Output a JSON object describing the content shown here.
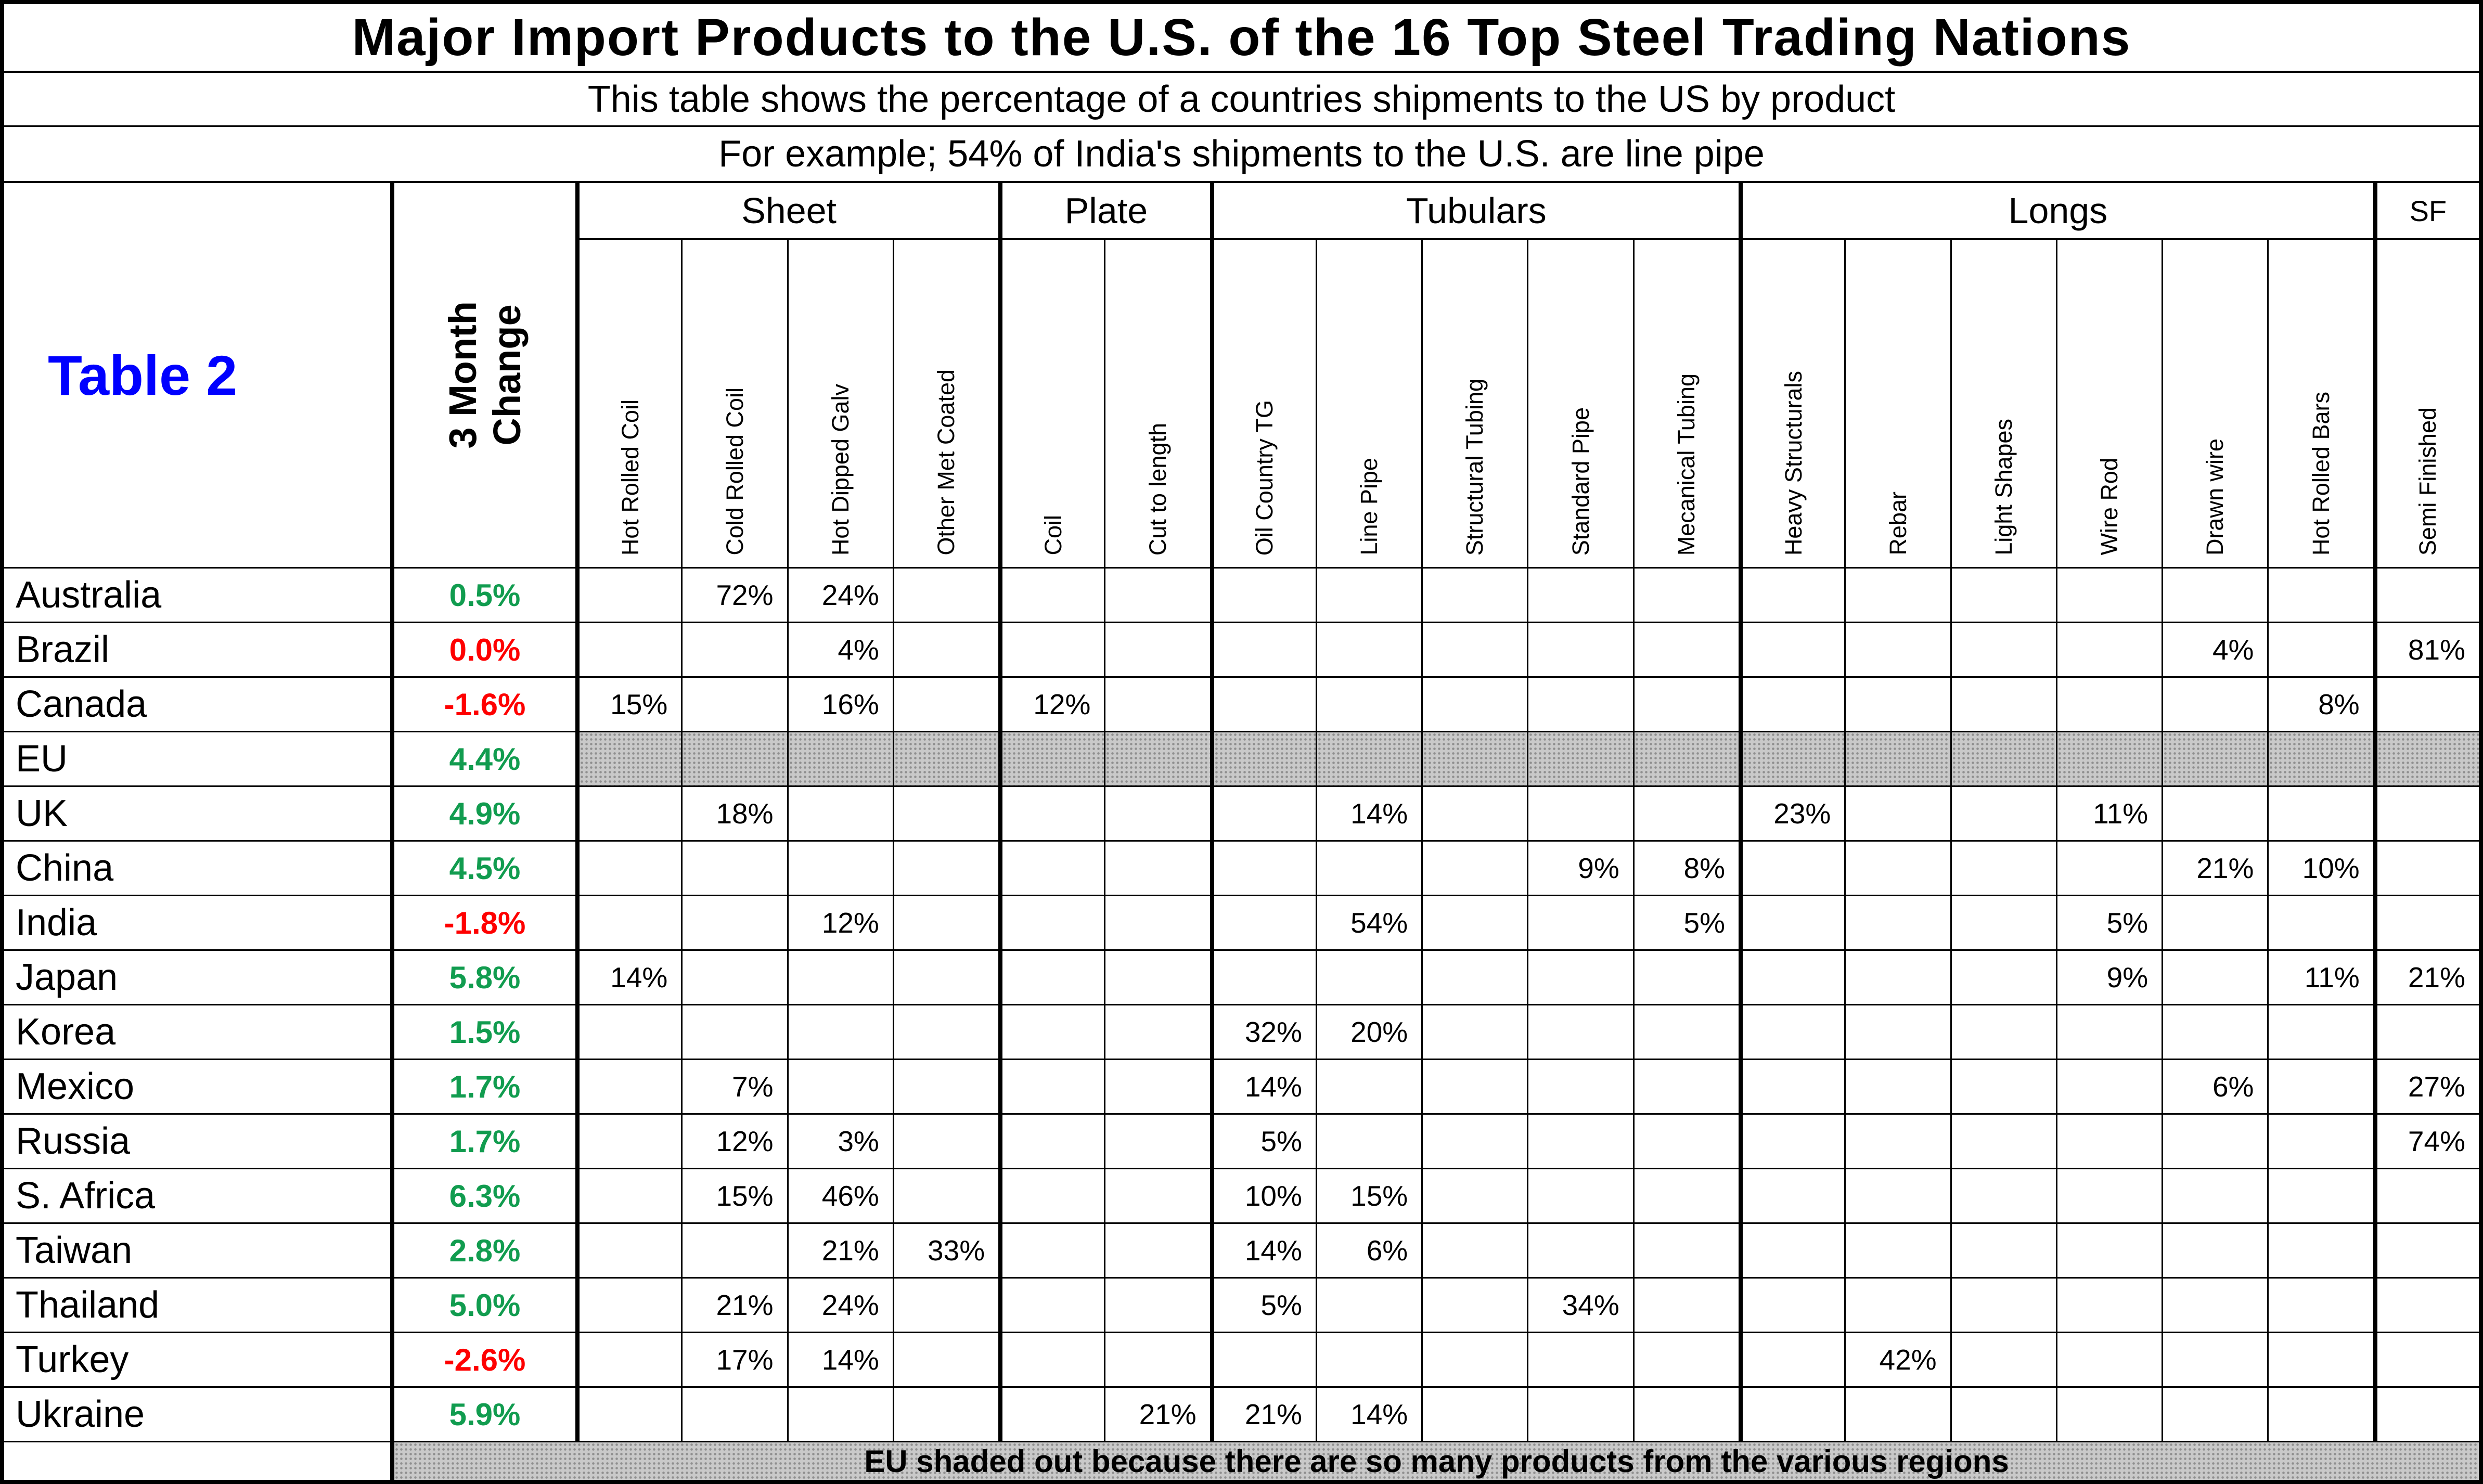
{
  "title": "Major Import Products to the U.S. of the 16 Top Steel Trading Nations",
  "subtitle1": "This table shows the percentage of a countries shipments to the US by product",
  "subtitle2": "For example; 54% of India's shipments to the U.S. are line pipe",
  "table_label": "Table 2",
  "change_header": "3 Month\nChange",
  "footer": "EU shaded out because there are so many products from the various regions",
  "colors": {
    "positive": "#119c4f",
    "negative": "#fe0000",
    "table_label": "#0000ff",
    "shaded_bg": "#c9c9c9",
    "shaded_dot": "#8f8f8f"
  },
  "groups": [
    {
      "label": "Sheet",
      "span": 4
    },
    {
      "label": "Plate",
      "span": 2
    },
    {
      "label": "Tubulars",
      "span": 5
    },
    {
      "label": "Longs",
      "span": 6
    },
    {
      "label": "SF",
      "span": 1
    }
  ],
  "columns": [
    "Hot Rolled Coil",
    "Cold Rolled Coil",
    "Hot Dipped Galv",
    "Other Met Coated",
    "Coil",
    "Cut to length",
    "Oil Country TG",
    "Line Pipe",
    "Structural Tubing",
    "Standard Pipe",
    "Mecanical Tubing",
    "Heavy Structurals",
    "Rebar",
    "Light Shapes",
    "Wire Rod",
    "Drawn wire",
    "Hot Rolled Bars",
    "Semi Finished"
  ],
  "rows": [
    {
      "country": "Australia",
      "change": "0.5%",
      "change_color": "positive",
      "shaded": false,
      "values": [
        "",
        "72%",
        "24%",
        "",
        "",
        "",
        "",
        "",
        "",
        "",
        "",
        "",
        "",
        "",
        "",
        "",
        "",
        ""
      ]
    },
    {
      "country": "Brazil",
      "change": "0.0%",
      "change_color": "negative",
      "shaded": false,
      "values": [
        "",
        "",
        "4%",
        "",
        "",
        "",
        "",
        "",
        "",
        "",
        "",
        "",
        "",
        "",
        "",
        "4%",
        "",
        "81%"
      ]
    },
    {
      "country": "Canada",
      "change": "-1.6%",
      "change_color": "negative",
      "shaded": false,
      "values": [
        "15%",
        "",
        "16%",
        "",
        "12%",
        "",
        "",
        "",
        "",
        "",
        "",
        "",
        "",
        "",
        "",
        "",
        "8%",
        ""
      ]
    },
    {
      "country": "EU",
      "change": "4.4%",
      "change_color": "positive",
      "shaded": true,
      "values": [
        "",
        "",
        "",
        "",
        "",
        "",
        "",
        "",
        "",
        "",
        "",
        "",
        "",
        "",
        "",
        "",
        "",
        ""
      ]
    },
    {
      "country": "UK",
      "change": "4.9%",
      "change_color": "positive",
      "shaded": false,
      "values": [
        "",
        "18%",
        "",
        "",
        "",
        "",
        "",
        "14%",
        "",
        "",
        "",
        "23%",
        "",
        "",
        "11%",
        "",
        "",
        ""
      ]
    },
    {
      "country": "China",
      "change": "4.5%",
      "change_color": "positive",
      "shaded": false,
      "values": [
        "",
        "",
        "",
        "",
        "",
        "",
        "",
        "",
        "",
        "9%",
        "8%",
        "",
        "",
        "",
        "",
        "21%",
        "10%",
        ""
      ]
    },
    {
      "country": "India",
      "change": "-1.8%",
      "change_color": "negative",
      "shaded": false,
      "values": [
        "",
        "",
        "12%",
        "",
        "",
        "",
        "",
        "54%",
        "",
        "",
        "5%",
        "",
        "",
        "",
        "5%",
        "",
        "",
        ""
      ]
    },
    {
      "country": "Japan",
      "change": "5.8%",
      "change_color": "positive",
      "shaded": false,
      "values": [
        "14%",
        "",
        "",
        "",
        "",
        "",
        "",
        "",
        "",
        "",
        "",
        "",
        "",
        "",
        "9%",
        "",
        "11%",
        "21%"
      ]
    },
    {
      "country": "Korea",
      "change": "1.5%",
      "change_color": "positive",
      "shaded": false,
      "values": [
        "",
        "",
        "",
        "",
        "",
        "",
        "32%",
        "20%",
        "",
        "",
        "",
        "",
        "",
        "",
        "",
        "",
        "",
        ""
      ]
    },
    {
      "country": "Mexico",
      "change": "1.7%",
      "change_color": "positive",
      "shaded": false,
      "values": [
        "",
        "7%",
        "",
        "",
        "",
        "",
        "14%",
        "",
        "",
        "",
        "",
        "",
        "",
        "",
        "",
        "6%",
        "",
        "27%"
      ]
    },
    {
      "country": "Russia",
      "change": "1.7%",
      "change_color": "positive",
      "shaded": false,
      "values": [
        "",
        "12%",
        "3%",
        "",
        "",
        "",
        "5%",
        "",
        "",
        "",
        "",
        "",
        "",
        "",
        "",
        "",
        "",
        "74%"
      ]
    },
    {
      "country": "S. Africa",
      "change": "6.3%",
      "change_color": "positive",
      "shaded": false,
      "values": [
        "",
        "15%",
        "46%",
        "",
        "",
        "",
        "10%",
        "15%",
        "",
        "",
        "",
        "",
        "",
        "",
        "",
        "",
        "",
        ""
      ]
    },
    {
      "country": "Taiwan",
      "change": "2.8%",
      "change_color": "positive",
      "shaded": false,
      "values": [
        "",
        "",
        "21%",
        "33%",
        "",
        "",
        "14%",
        "6%",
        "",
        "",
        "",
        "",
        "",
        "",
        "",
        "",
        "",
        ""
      ]
    },
    {
      "country": "Thailand",
      "change": "5.0%",
      "change_color": "positive",
      "shaded": false,
      "values": [
        "",
        "21%",
        "24%",
        "",
        "",
        "",
        "5%",
        "",
        "",
        "34%",
        "",
        "",
        "",
        "",
        "",
        "",
        "",
        ""
      ]
    },
    {
      "country": "Turkey",
      "change": "-2.6%",
      "change_color": "negative",
      "shaded": false,
      "values": [
        "",
        "17%",
        "14%",
        "",
        "",
        "",
        "",
        "",
        "",
        "",
        "",
        "",
        "42%",
        "",
        "",
        "",
        "",
        ""
      ]
    },
    {
      "country": "Ukraine",
      "change": "5.9%",
      "change_color": "positive",
      "shaded": false,
      "values": [
        "",
        "",
        "",
        "",
        "",
        "21%",
        "21%",
        "14%",
        "",
        "",
        "",
        "",
        "",
        "",
        "",
        "",
        "",
        ""
      ]
    }
  ]
}
